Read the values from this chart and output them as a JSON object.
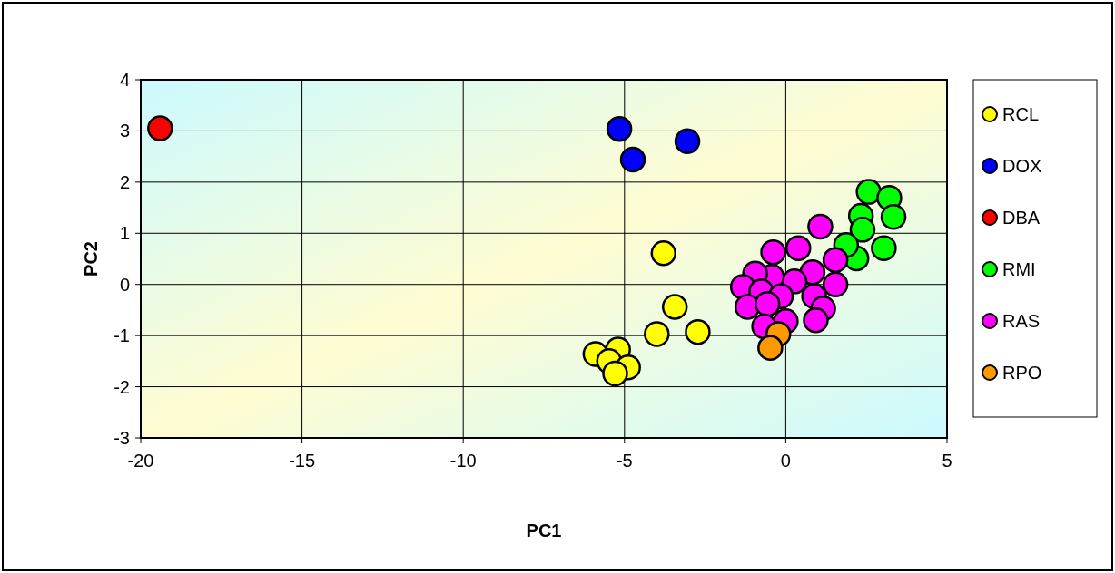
{
  "chart_data": {
    "type": "scatter",
    "xlabel": "PC1",
    "ylabel": "PC2",
    "xlim": [
      -20,
      5
    ],
    "ylim": [
      -3,
      4
    ],
    "xticks": [
      -20,
      -15,
      -10,
      -5,
      0,
      5
    ],
    "yticks": [
      -3,
      -2,
      -1,
      0,
      1,
      2,
      3,
      4
    ],
    "grid": true,
    "legend": "right",
    "marker": "circle",
    "series": [
      {
        "name": "RCL",
        "color": "#ffff00",
        "x": [
          -3.79,
          -3.44,
          -4.0,
          -2.73,
          -5.9,
          -5.2,
          -5.48,
          -4.89,
          -5.29
        ],
        "values": [
          0.61,
          -0.44,
          -0.97,
          -0.93,
          -1.36,
          -1.27,
          -1.5,
          -1.62,
          -1.74
        ]
      },
      {
        "name": "DOX",
        "color": "#0000ff",
        "x": [
          -5.16,
          -4.74,
          -3.05
        ],
        "values": [
          3.04,
          2.44,
          2.8
        ]
      },
      {
        "name": "DBA",
        "color": "#ff0000",
        "x": [
          -19.4
        ],
        "values": [
          3.05
        ]
      },
      {
        "name": "RMI",
        "color": "#00ff00",
        "x": [
          2.57,
          3.21,
          3.34,
          2.33,
          2.38,
          2.19,
          3.04,
          1.87
        ],
        "values": [
          1.81,
          1.69,
          1.32,
          1.34,
          1.07,
          0.51,
          0.71,
          0.77
        ]
      },
      {
        "name": "RAS",
        "color": "#ff00ff",
        "x": [
          1.07,
          0.39,
          -0.39,
          1.54,
          0.83,
          0.27,
          -0.43,
          -0.95,
          -1.33,
          -0.76,
          -0.15,
          0.88,
          1.16,
          1.54,
          -1.19,
          -0.57,
          0.93,
          0.0,
          -0.67
        ],
        "values": [
          1.13,
          0.71,
          0.63,
          0.48,
          0.24,
          0.06,
          0.15,
          0.21,
          -0.05,
          -0.14,
          -0.23,
          -0.23,
          -0.47,
          0.0,
          -0.44,
          -0.38,
          -0.7,
          -0.72,
          -0.82
        ]
      },
      {
        "name": "RPO",
        "color": "#ff9900",
        "x": [
          -0.23,
          -0.48
        ],
        "values": [
          -0.97,
          -1.24
        ]
      }
    ]
  }
}
